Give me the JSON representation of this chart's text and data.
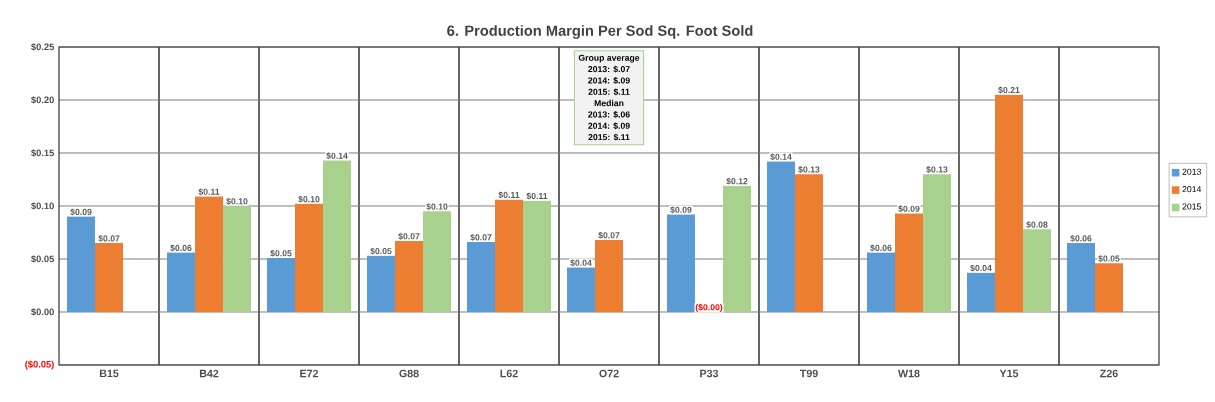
{
  "chart_data": {
    "type": "bar",
    "title": "6. Production Margin Per Sod Sq. Foot Sold",
    "categories": [
      "B15",
      "B42",
      "E72",
      "G88",
      "L62",
      "O72",
      "P33",
      "T99",
      "W18",
      "Y15",
      "Z26"
    ],
    "series": [
      {
        "name": "2013",
        "color": "#5b9bd5",
        "values": [
          0.09,
          0.056,
          0.051,
          0.053,
          0.066,
          0.042,
          0.092,
          0.142,
          0.056,
          0.037,
          0.065
        ],
        "value_labels": [
          "$0.09",
          "$0.06",
          "$0.05",
          "$0.05",
          "$0.07",
          "$0.04",
          "$0.09",
          "$0.14",
          "$0.06",
          "$0.04",
          "$0.06"
        ]
      },
      {
        "name": "2014",
        "color": "#ed7d31",
        "values": [
          0.065,
          0.109,
          0.102,
          0.067,
          0.106,
          0.068,
          -0.001,
          0.13,
          0.093,
          0.205,
          0.046
        ],
        "value_labels": [
          "$0.07",
          "$0.11",
          "$0.10",
          "$0.07",
          "$0.11",
          "$0.07",
          "($0.00)",
          "$0.13",
          "$0.09",
          "$0.21",
          "$0.05"
        ]
      },
      {
        "name": "2015",
        "color": "#a9d18e",
        "values": [
          null,
          0.1,
          0.143,
          0.095,
          0.105,
          null,
          0.119,
          null,
          0.13,
          0.078,
          null
        ],
        "value_labels": [
          null,
          "$0.10",
          "$0.14",
          "$0.10",
          "$0.11",
          null,
          "$0.12",
          null,
          "$0.13",
          "$0.08",
          null
        ]
      }
    ],
    "ylim": [
      -0.05,
      0.25
    ],
    "yticks": [
      {
        "value": -0.05,
        "label": "($0.05)"
      },
      {
        "value": 0,
        "label": "$0.00"
      },
      {
        "value": 0.05,
        "label": "$0.05"
      },
      {
        "value": 0.1,
        "label": "$0.10"
      },
      {
        "value": 0.15,
        "label": "$0.15"
      },
      {
        "value": 0.2,
        "label": "$0.20"
      },
      {
        "value": 0.25,
        "label": "$0.25"
      }
    ],
    "grid": true,
    "legend": "right",
    "annotations": [
      "Group average",
      "2013: $.07",
      "2014: $.09",
      "2015: $.11",
      "Median",
      "2013: $.06",
      "2014: $.09",
      "2015: $.11"
    ]
  }
}
